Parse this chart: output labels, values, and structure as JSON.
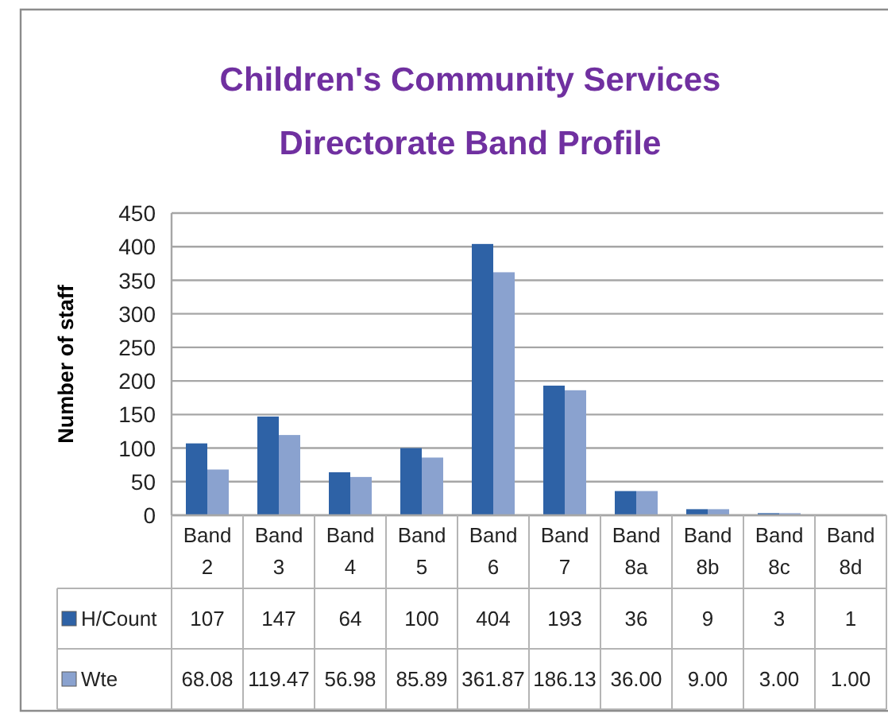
{
  "chart_data": {
    "type": "bar",
    "title": "Children's Community Services Directorate Band Profile",
    "ylabel": "Number of staff",
    "categories": [
      "Band 2",
      "Band 3",
      "Band 4",
      "Band 5",
      "Band 6",
      "Band 7",
      "Band 8a",
      "Band 8b",
      "Band 8c",
      "Band 8d"
    ],
    "series": [
      {
        "name": "H/Count",
        "color": "#2e62a6",
        "values": [
          107,
          147,
          64,
          100,
          404,
          193,
          36,
          9,
          3,
          1
        ],
        "value_labels": [
          "107",
          "147",
          "64",
          "100",
          "404",
          "193",
          "36",
          "9",
          "3",
          "1"
        ]
      },
      {
        "name": "Wte",
        "color": "#8aa2cf",
        "values": [
          68.08,
          119.47,
          56.98,
          85.89,
          361.87,
          186.13,
          36.0,
          9.0,
          3.0,
          1.0
        ],
        "value_labels": [
          "68.08",
          "119.47",
          "56.98",
          "85.89",
          "361.87",
          "186.13",
          "36.00",
          "9.00",
          "3.00",
          "1.00"
        ]
      }
    ],
    "ylim": [
      0,
      450
    ],
    "yticks": [
      0,
      50,
      100,
      150,
      200,
      250,
      300,
      350,
      400,
      450
    ],
    "grid": "y",
    "legend": "bottom left"
  }
}
